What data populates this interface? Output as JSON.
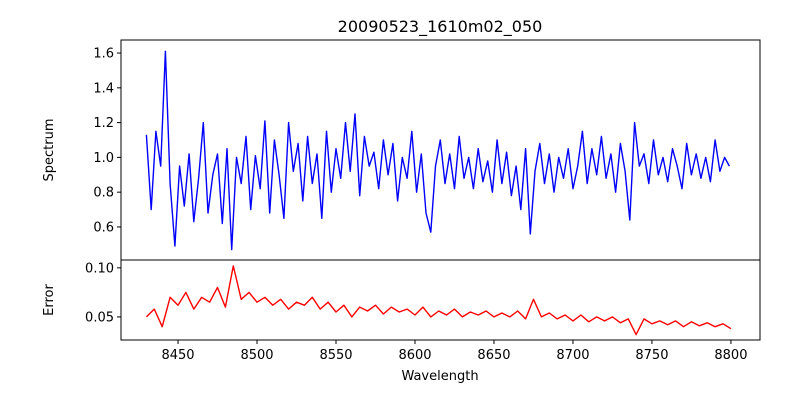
{
  "chart_data": [
    {
      "type": "line",
      "title": "20090523_1610m02_050",
      "xlabel": "",
      "ylabel": "Spectrum",
      "xlim": [
        8413.9,
        8818.4
      ],
      "ylim": [
        0.41,
        1.675
      ],
      "yticks": [
        0.6,
        0.8,
        1.0,
        1.2,
        1.4,
        1.6
      ],
      "ytick_labels": [
        "0.6",
        "0.8",
        "1.0",
        "1.2",
        "1.4",
        "1.6"
      ],
      "series": [
        {
          "name": "spectrum",
          "color": "#0000ff",
          "x_start": 8430,
          "x_step": 3,
          "values": [
            1.13,
            0.7,
            1.15,
            0.95,
            1.61,
            0.85,
            0.49,
            0.95,
            0.72,
            1.02,
            0.63,
            0.88,
            1.2,
            0.68,
            0.9,
            1.02,
            0.62,
            1.05,
            0.47,
            1.0,
            0.85,
            1.12,
            0.7,
            1.01,
            0.82,
            1.21,
            0.68,
            1.1,
            0.9,
            0.65,
            1.2,
            0.92,
            1.08,
            0.75,
            1.12,
            0.85,
            1.02,
            0.65,
            1.15,
            0.8,
            1.05,
            0.88,
            1.2,
            0.92,
            1.25,
            0.78,
            1.12,
            0.95,
            1.03,
            0.82,
            1.1,
            0.9,
            1.08,
            0.75,
            1.0,
            0.88,
            1.15,
            0.8,
            1.02,
            0.68,
            0.57,
            0.95,
            1.1,
            0.85,
            1.02,
            0.82,
            1.12,
            0.88,
            1.0,
            0.82,
            1.05,
            0.86,
            0.98,
            0.8,
            1.1,
            0.85,
            1.03,
            0.78,
            0.95,
            0.7,
            1.05,
            0.56,
            0.92,
            1.08,
            0.85,
            1.02,
            0.8,
            1.0,
            0.88,
            1.05,
            0.82,
            0.95,
            1.15,
            0.85,
            1.05,
            0.9,
            1.12,
            0.88,
            1.02,
            0.8,
            1.08,
            0.92,
            0.64,
            1.2,
            0.95,
            1.02,
            0.85,
            1.1,
            0.9,
            1.0,
            0.86,
            1.05,
            0.95,
            0.82,
            1.08,
            0.9,
            1.02,
            0.88,
            1.0,
            0.86,
            1.1,
            0.92,
            1.0,
            0.95
          ]
        }
      ]
    },
    {
      "type": "line",
      "title": "",
      "xlabel": "Wavelength",
      "ylabel": "Error",
      "xlim": [
        8413.9,
        8818.4
      ],
      "ylim": [
        0.0265,
        0.108
      ],
      "xticks": [
        8450,
        8500,
        8550,
        8600,
        8650,
        8700,
        8750,
        8800
      ],
      "xtick_labels": [
        "8450",
        "8500",
        "8550",
        "8600",
        "8650",
        "8700",
        "8750",
        "8800"
      ],
      "yticks": [
        0.05,
        0.1
      ],
      "ytick_labels": [
        "0.05",
        "0.10"
      ],
      "series": [
        {
          "name": "error",
          "color": "#ff0000",
          "x_start": 8430,
          "x_step": 5,
          "values": [
            0.05,
            0.058,
            0.04,
            0.07,
            0.062,
            0.075,
            0.058,
            0.07,
            0.065,
            0.08,
            0.06,
            0.102,
            0.068,
            0.075,
            0.065,
            0.07,
            0.062,
            0.068,
            0.058,
            0.065,
            0.062,
            0.07,
            0.058,
            0.065,
            0.055,
            0.062,
            0.05,
            0.06,
            0.056,
            0.062,
            0.053,
            0.06,
            0.055,
            0.058,
            0.052,
            0.06,
            0.05,
            0.056,
            0.052,
            0.058,
            0.05,
            0.055,
            0.052,
            0.056,
            0.05,
            0.054,
            0.05,
            0.056,
            0.048,
            0.068,
            0.05,
            0.054,
            0.048,
            0.052,
            0.046,
            0.052,
            0.045,
            0.05,
            0.046,
            0.05,
            0.044,
            0.048,
            0.032,
            0.048,
            0.043,
            0.046,
            0.042,
            0.046,
            0.04,
            0.045,
            0.041,
            0.044,
            0.04,
            0.043,
            0.038
          ]
        }
      ]
    }
  ]
}
